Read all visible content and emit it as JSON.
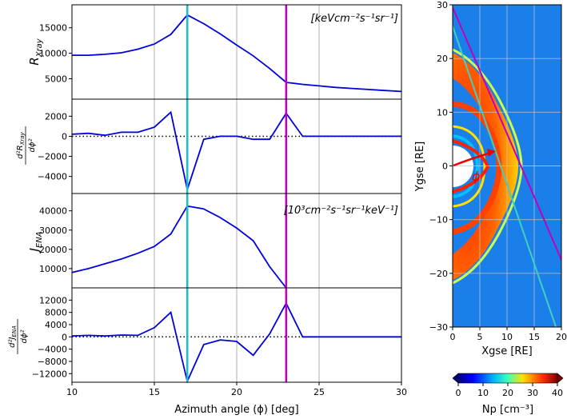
{
  "chart_data": [
    {
      "type": "line",
      "id": "rxray",
      "ylabel": "R_Xray",
      "annotation": "[keVcm⁻²s⁻¹sr⁻¹]",
      "x": [
        10,
        11,
        12,
        13,
        14,
        15,
        16,
        17,
        18,
        19,
        20,
        21,
        22,
        23,
        24,
        25,
        26,
        27,
        28,
        29,
        30
      ],
      "values": [
        9600,
        9600,
        9800,
        10100,
        10800,
        11800,
        13700,
        17500,
        15800,
        13800,
        11600,
        9500,
        7000,
        4300,
        3900,
        3600,
        3300,
        3100,
        2900,
        2700,
        2500
      ],
      "ylim": [
        1000,
        19500
      ],
      "yticks": [
        5000,
        10000,
        15000
      ],
      "ytick_labels": [
        "5000",
        "10000",
        "15000"
      ]
    },
    {
      "type": "line",
      "id": "d2rxray",
      "ylabel": "d²R_Xray / dϕ²",
      "x": [
        10,
        11,
        12,
        13,
        14,
        15,
        16,
        17,
        18,
        19,
        20,
        21,
        22,
        23,
        24,
        25,
        26,
        27,
        28,
        29,
        30
      ],
      "values": [
        200,
        300,
        100,
        400,
        400,
        900,
        2400,
        -5300,
        -300,
        0,
        0,
        -300,
        -300,
        2300,
        0,
        0,
        0,
        0,
        0,
        0,
        0
      ],
      "zero_line": "dotted",
      "ylim": [
        -5700,
        3700
      ],
      "yticks": [
        -4000,
        -2000,
        0,
        2000
      ],
      "ytick_labels": [
        "−4000",
        "−2000",
        "0",
        "2000"
      ]
    },
    {
      "type": "line",
      "id": "jena",
      "ylabel": "J_ENA",
      "annotation": "[10³cm⁻²s⁻¹sr⁻¹keV⁻¹]",
      "x": [
        10,
        11,
        12,
        13,
        14,
        15,
        16,
        17,
        18,
        19,
        20,
        21,
        22,
        23
      ],
      "values": [
        8000,
        10000,
        12500,
        15000,
        18000,
        21500,
        28000,
        42500,
        41000,
        36500,
        31000,
        24500,
        11000,
        0
      ],
      "ylim": [
        0,
        49000
      ],
      "yticks": [
        10000,
        20000,
        30000,
        40000
      ],
      "ytick_labels": [
        "10000",
        "20000",
        "30000",
        "40000"
      ]
    },
    {
      "type": "line",
      "id": "d2jena",
      "ylabel": "d²J_ENA / dϕ²",
      "x": [
        10,
        11,
        12,
        13,
        14,
        15,
        16,
        17,
        18,
        19,
        20,
        21,
        22,
        23,
        24,
        25,
        26,
        27,
        28,
        29,
        30
      ],
      "values": [
        300,
        500,
        300,
        600,
        500,
        3000,
        8000,
        -14500,
        -2500,
        -1000,
        -1500,
        -6000,
        1000,
        11000,
        0,
        0,
        0,
        0,
        0,
        0,
        0
      ],
      "zero_line": "dotted",
      "ylim": [
        -14800,
        16000
      ],
      "yticks": [
        -12000,
        -8000,
        -4000,
        0,
        4000,
        8000,
        12000
      ],
      "ytick_labels": [
        "−12000",
        "−8000",
        "−4000",
        "0",
        "4000",
        "8000",
        "12000"
      ]
    }
  ],
  "shared_x": {
    "xlabel": "Azimuth angle (ϕ) [deg]",
    "xlim": [
      10,
      30
    ],
    "xticks": [
      10,
      15,
      20,
      25,
      30
    ],
    "xtick_labels": [
      "10",
      "15",
      "20",
      "25",
      "30"
    ],
    "grid_lines": [
      15,
      20,
      25
    ],
    "markers": [
      {
        "x": 17,
        "color": "#17becf"
      },
      {
        "x": 23,
        "color": "#bf00bf"
      }
    ],
    "series_color": "#0000dd"
  },
  "map": {
    "xlabel": "Xgse [RE]",
    "ylabel": "Ygse [RE]",
    "xlim": [
      0,
      20
    ],
    "ylim": [
      -30,
      30
    ],
    "xticks": [
      0,
      5,
      10,
      15,
      20
    ],
    "xtick_labels": [
      "0",
      "5",
      "10",
      "15",
      "20"
    ],
    "yticks": [
      -30,
      -20,
      -10,
      0,
      10,
      20,
      30
    ],
    "ytick_labels": [
      "−30",
      "−20",
      "−10",
      "0",
      "10",
      "20",
      "30"
    ],
    "phi_label": "ϕ",
    "background": "#1a7fe8",
    "lines": [
      {
        "name": "magenta-tangent",
        "color": "#bf00bf",
        "from": [
          0,
          29.5
        ],
        "to": [
          20,
          -17.5
        ]
      },
      {
        "name": "cyan-tangent",
        "color": "#3fd0c0",
        "from": [
          0,
          26
        ],
        "to": [
          19,
          -30
        ]
      }
    ]
  },
  "colorbar": {
    "label": "Np [cm⁻³]",
    "ticks": [
      0,
      10,
      20,
      30,
      40
    ],
    "tick_labels": [
      "0",
      "10",
      "20",
      "30",
      "40"
    ],
    "range": [
      0,
      40
    ]
  }
}
